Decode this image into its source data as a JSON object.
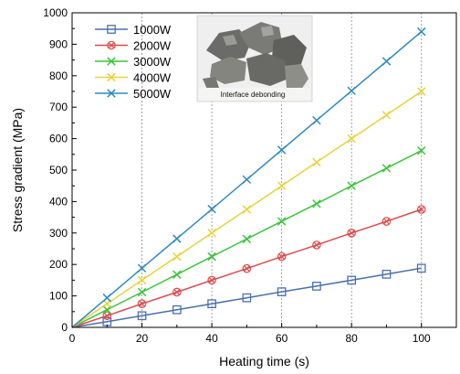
{
  "chart_data": {
    "type": "line",
    "title": "",
    "xlabel": "Heating time (s)",
    "ylabel": "Stress gradient (MPa)",
    "xlim": [
      0,
      110
    ],
    "ylim": [
      0,
      1000
    ],
    "x_ticks": [
      0,
      20,
      40,
      60,
      80,
      100
    ],
    "y_ticks": [
      0,
      100,
      200,
      300,
      400,
      500,
      600,
      700,
      800,
      900,
      1000
    ],
    "grid": "vertical dashed at x ticks",
    "legend_position": "top-left",
    "x": [
      0,
      10,
      20,
      30,
      40,
      50,
      60,
      70,
      80,
      90,
      100
    ],
    "series": [
      {
        "name": "1000W",
        "color": "#4a6fb0",
        "marker": "square",
        "values": [
          0,
          18,
          37,
          56,
          75,
          94,
          113,
          131,
          150,
          169,
          188
        ]
      },
      {
        "name": "2000W",
        "color": "#e04848",
        "marker": "circle-x",
        "values": [
          0,
          37,
          75,
          112,
          150,
          187,
          225,
          262,
          300,
          337,
          375
        ]
      },
      {
        "name": "3000W",
        "color": "#3cc43c",
        "marker": "x",
        "values": [
          0,
          56,
          112,
          168,
          225,
          281,
          337,
          393,
          450,
          506,
          562
        ]
      },
      {
        "name": "4000W",
        "color": "#e8d23a",
        "marker": "x",
        "values": [
          0,
          75,
          150,
          225,
          300,
          375,
          450,
          525,
          600,
          675,
          750
        ]
      },
      {
        "name": "5000W",
        "color": "#2f8bbf",
        "marker": "x",
        "values": [
          0,
          94,
          188,
          282,
          376,
          470,
          564,
          658,
          752,
          846,
          940
        ]
      }
    ],
    "inset": {
      "caption": "Interface debonding",
      "icon": "rock-fragments-photo"
    }
  }
}
